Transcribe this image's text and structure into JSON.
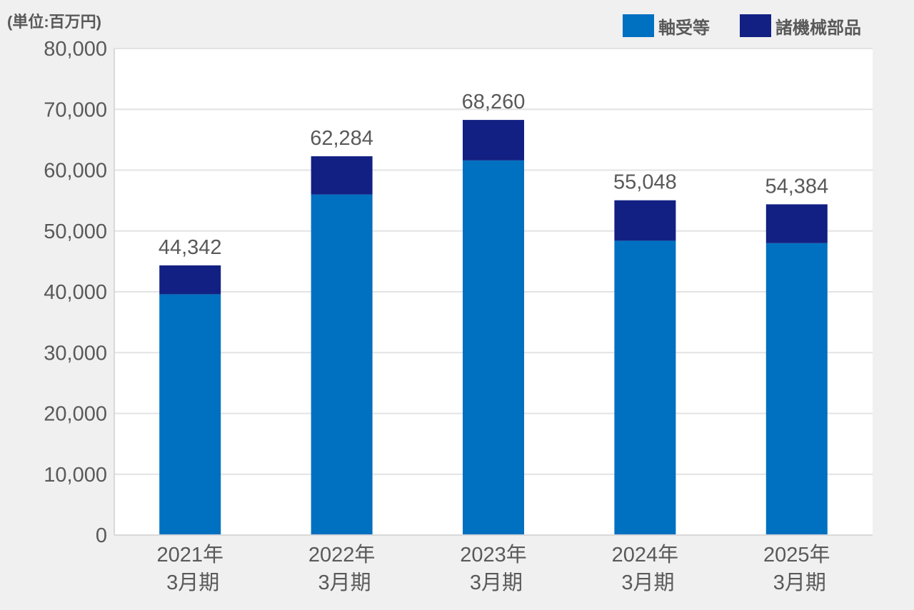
{
  "chart_data": {
    "type": "bar",
    "stacked": true,
    "unit_label": "(単位:百万円)",
    "categories": [
      [
        "2021年",
        "3月期"
      ],
      [
        "2022年",
        "3月期"
      ],
      [
        "2023年",
        "3月期"
      ],
      [
        "2024年",
        "3月期"
      ],
      [
        "2025年",
        "3月期"
      ]
    ],
    "series": [
      {
        "name": "軸受等",
        "color": "#0070c0",
        "values": [
          39600,
          56000,
          61600,
          48400,
          48000
        ]
      },
      {
        "name": "諸機械部品",
        "color": "#122083",
        "values": [
          4742,
          6284,
          6660,
          6648,
          6384
        ]
      }
    ],
    "totals": [
      44342,
      62284,
      68260,
      55048,
      54384
    ],
    "total_labels": [
      "44,342",
      "62,284",
      "68,260",
      "55,048",
      "54,384"
    ],
    "ylim": [
      0,
      80000
    ],
    "yticks": [
      0,
      10000,
      20000,
      30000,
      40000,
      50000,
      60000,
      70000,
      80000
    ],
    "ytick_labels": [
      "0",
      "10,000",
      "20,000",
      "30,000",
      "40,000",
      "50,000",
      "60,000",
      "70,000",
      "80,000"
    ],
    "grid": true,
    "legend_position": "top-right"
  }
}
